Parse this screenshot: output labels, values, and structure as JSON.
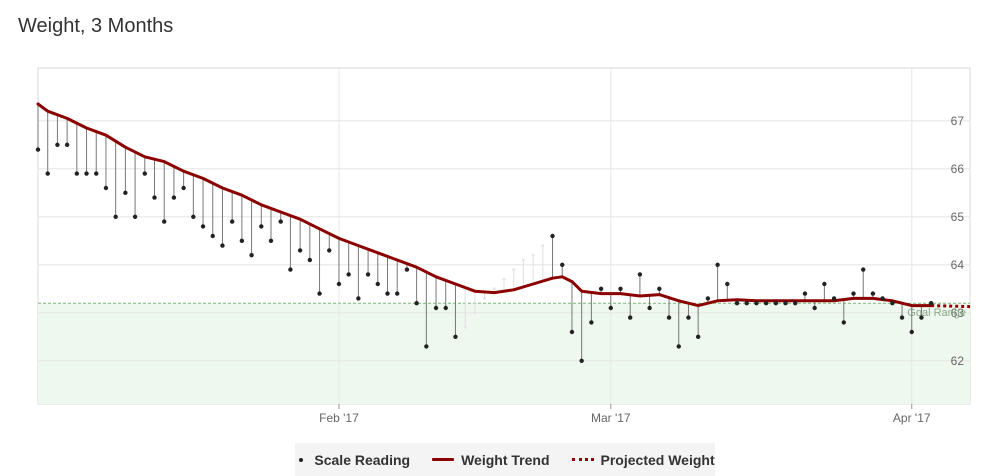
{
  "title": "Weight, 3 Months",
  "chart_data": {
    "type": "line",
    "x_range": [
      "2017-01-01",
      "2017-04-07"
    ],
    "ylim": [
      61.1,
      68.1
    ],
    "y_ticks": [
      62,
      63,
      64,
      65,
      66,
      67
    ],
    "x_ticks": [
      {
        "date": "2017-02-01",
        "label": "Feb '17"
      },
      {
        "date": "2017-03-01",
        "label": "Mar '17"
      },
      {
        "date": "2017-04-01",
        "label": "Apr '17"
      }
    ],
    "goal_range": {
      "min": 61.1,
      "max": 63.2,
      "label": "Goal Range"
    },
    "grid": true,
    "legend_placement": "bottom",
    "colors": {
      "trend": "#8b0000",
      "reading": "#222222",
      "stem": "#777777",
      "goal_fill": "#eef8ee",
      "goal_line": "#7cb87c"
    },
    "series": [
      {
        "name": "Scale Reading",
        "points": [
          [
            "2017-01-01",
            66.4
          ],
          [
            "2017-01-02",
            65.9
          ],
          [
            "2017-01-03",
            66.5
          ],
          [
            "2017-01-04",
            66.5
          ],
          [
            "2017-01-05",
            65.9
          ],
          [
            "2017-01-06",
            65.9
          ],
          [
            "2017-01-07",
            65.9
          ],
          [
            "2017-01-08",
            65.6
          ],
          [
            "2017-01-09",
            65.0
          ],
          [
            "2017-01-10",
            65.5
          ],
          [
            "2017-01-11",
            65.0
          ],
          [
            "2017-01-12",
            65.9
          ],
          [
            "2017-01-13",
            65.4
          ],
          [
            "2017-01-14",
            64.9
          ],
          [
            "2017-01-15",
            65.4
          ],
          [
            "2017-01-16",
            65.6
          ],
          [
            "2017-01-17",
            65.0
          ],
          [
            "2017-01-18",
            64.8
          ],
          [
            "2017-01-19",
            64.6
          ],
          [
            "2017-01-20",
            64.4
          ],
          [
            "2017-01-21",
            64.9
          ],
          [
            "2017-01-22",
            64.5
          ],
          [
            "2017-01-23",
            64.2
          ],
          [
            "2017-01-24",
            64.8
          ],
          [
            "2017-01-25",
            64.5
          ],
          [
            "2017-01-26",
            64.9
          ],
          [
            "2017-01-27",
            63.9
          ],
          [
            "2017-01-28",
            64.3
          ],
          [
            "2017-01-29",
            64.1
          ],
          [
            "2017-01-30",
            63.4
          ],
          [
            "2017-01-31",
            64.3
          ],
          [
            "2017-02-01",
            63.6
          ],
          [
            "2017-02-02",
            63.8
          ],
          [
            "2017-02-03",
            63.3
          ],
          [
            "2017-02-04",
            63.8
          ],
          [
            "2017-02-05",
            63.6
          ],
          [
            "2017-02-06",
            63.4
          ],
          [
            "2017-02-07",
            63.4
          ],
          [
            "2017-02-08",
            63.9
          ],
          [
            "2017-02-09",
            63.2
          ],
          [
            "2017-02-10",
            62.3
          ],
          [
            "2017-02-11",
            63.1
          ],
          [
            "2017-02-12",
            63.1
          ],
          [
            "2017-02-13",
            62.5
          ],
          [
            "2017-02-23",
            64.6
          ],
          [
            "2017-02-24",
            64.0
          ],
          [
            "2017-02-25",
            62.6
          ],
          [
            "2017-02-26",
            62.0
          ],
          [
            "2017-02-27",
            62.8
          ],
          [
            "2017-02-28",
            63.5
          ],
          [
            "2017-03-01",
            63.1
          ],
          [
            "2017-03-02",
            63.5
          ],
          [
            "2017-03-03",
            62.9
          ],
          [
            "2017-03-04",
            63.8
          ],
          [
            "2017-03-05",
            63.1
          ],
          [
            "2017-03-06",
            63.5
          ],
          [
            "2017-03-07",
            62.9
          ],
          [
            "2017-03-08",
            62.3
          ],
          [
            "2017-03-09",
            62.9
          ],
          [
            "2017-03-10",
            62.5
          ],
          [
            "2017-03-11",
            63.3
          ],
          [
            "2017-03-12",
            64.0
          ],
          [
            "2017-03-13",
            63.6
          ],
          [
            "2017-03-14",
            63.2
          ],
          [
            "2017-03-15",
            63.2
          ],
          [
            "2017-03-16",
            63.2
          ],
          [
            "2017-03-17",
            63.2
          ],
          [
            "2017-03-18",
            63.2
          ],
          [
            "2017-03-19",
            63.2
          ],
          [
            "2017-03-20",
            63.2
          ],
          [
            "2017-03-21",
            63.4
          ],
          [
            "2017-03-22",
            63.1
          ],
          [
            "2017-03-23",
            63.6
          ],
          [
            "2017-03-24",
            63.3
          ],
          [
            "2017-03-25",
            62.8
          ],
          [
            "2017-03-26",
            63.4
          ],
          [
            "2017-03-27",
            63.9
          ],
          [
            "2017-03-28",
            63.4
          ],
          [
            "2017-03-29",
            63.3
          ],
          [
            "2017-03-30",
            63.2
          ],
          [
            "2017-03-31",
            62.9
          ],
          [
            "2017-04-01",
            62.6
          ],
          [
            "2017-04-02",
            62.9
          ],
          [
            "2017-04-03",
            63.2
          ]
        ],
        "faded_points": [
          [
            "2017-02-14",
            62.7
          ],
          [
            "2017-02-15",
            63.0
          ],
          [
            "2017-02-16",
            63.3
          ],
          [
            "2017-02-17",
            63.5
          ],
          [
            "2017-02-18",
            63.7
          ],
          [
            "2017-02-19",
            63.9
          ],
          [
            "2017-02-20",
            64.1
          ],
          [
            "2017-02-21",
            64.2
          ],
          [
            "2017-02-22",
            64.4
          ]
        ]
      },
      {
        "name": "Weight Trend",
        "points": [
          [
            "2017-01-01",
            67.35
          ],
          [
            "2017-01-02",
            67.2
          ],
          [
            "2017-01-04",
            67.05
          ],
          [
            "2017-01-06",
            66.85
          ],
          [
            "2017-01-08",
            66.7
          ],
          [
            "2017-01-10",
            66.45
          ],
          [
            "2017-01-12",
            66.25
          ],
          [
            "2017-01-14",
            66.15
          ],
          [
            "2017-01-16",
            65.95
          ],
          [
            "2017-01-18",
            65.8
          ],
          [
            "2017-01-20",
            65.6
          ],
          [
            "2017-01-22",
            65.45
          ],
          [
            "2017-01-24",
            65.25
          ],
          [
            "2017-01-26",
            65.1
          ],
          [
            "2017-01-28",
            64.95
          ],
          [
            "2017-01-30",
            64.75
          ],
          [
            "2017-02-01",
            64.55
          ],
          [
            "2017-02-03",
            64.4
          ],
          [
            "2017-02-05",
            64.25
          ],
          [
            "2017-02-07",
            64.1
          ],
          [
            "2017-02-09",
            63.95
          ],
          [
            "2017-02-11",
            63.75
          ],
          [
            "2017-02-13",
            63.6
          ],
          [
            "2017-02-15",
            63.45
          ],
          [
            "2017-02-17",
            63.42
          ],
          [
            "2017-02-19",
            63.48
          ],
          [
            "2017-02-21",
            63.6
          ],
          [
            "2017-02-23",
            63.72
          ],
          [
            "2017-02-24",
            63.75
          ],
          [
            "2017-02-25",
            63.65
          ],
          [
            "2017-02-26",
            63.45
          ],
          [
            "2017-02-28",
            63.4
          ],
          [
            "2017-03-02",
            63.4
          ],
          [
            "2017-03-04",
            63.35
          ],
          [
            "2017-03-06",
            63.38
          ],
          [
            "2017-03-08",
            63.25
          ],
          [
            "2017-03-10",
            63.15
          ],
          [
            "2017-03-12",
            63.25
          ],
          [
            "2017-03-14",
            63.27
          ],
          [
            "2017-03-16",
            63.25
          ],
          [
            "2017-03-18",
            63.25
          ],
          [
            "2017-03-20",
            63.25
          ],
          [
            "2017-03-22",
            63.25
          ],
          [
            "2017-03-24",
            63.25
          ],
          [
            "2017-03-26",
            63.3
          ],
          [
            "2017-03-28",
            63.3
          ],
          [
            "2017-03-30",
            63.25
          ],
          [
            "2017-04-01",
            63.15
          ],
          [
            "2017-04-03",
            63.15
          ]
        ]
      },
      {
        "name": "Projected Weight",
        "points": [
          [
            "2017-04-03",
            63.15
          ],
          [
            "2017-04-07",
            63.13
          ]
        ]
      }
    ]
  },
  "legend": {
    "items": [
      {
        "label": "Scale Reading",
        "swatch": "dot"
      },
      {
        "label": "Weight Trend",
        "swatch": "line"
      },
      {
        "label": "Projected Weight",
        "swatch": "dotted"
      }
    ]
  }
}
